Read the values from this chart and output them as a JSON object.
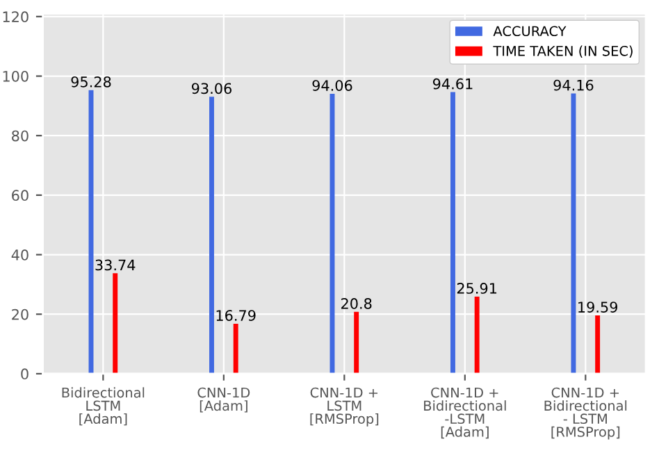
{
  "chart_data": {
    "type": "bar",
    "categories": [
      "Bidirectional\nLSTM\n[Adam]",
      "CNN-1D\n[Adam]",
      "CNN-1D +\nLSTM\n[RMSProp]",
      "CNN-1D +\nBidirectional\n-LSTM\n[Adam]",
      "CNN-1D +\nBidirectional\n- LSTM\n[RMSProp]"
    ],
    "series": [
      {
        "name": "ACCURACY",
        "color": "#4169e1",
        "values": [
          95.28,
          93.06,
          94.06,
          94.61,
          94.16
        ]
      },
      {
        "name": "TIME TAKEN (IN SEC)",
        "color": "#ff0000",
        "values": [
          33.74,
          16.79,
          20.8,
          25.91,
          19.59
        ]
      }
    ],
    "ylim": [
      0,
      121
    ],
    "yticks": [
      0,
      20,
      40,
      60,
      80,
      100,
      120
    ],
    "grid": true,
    "legend": "top right",
    "data_labels": true
  }
}
